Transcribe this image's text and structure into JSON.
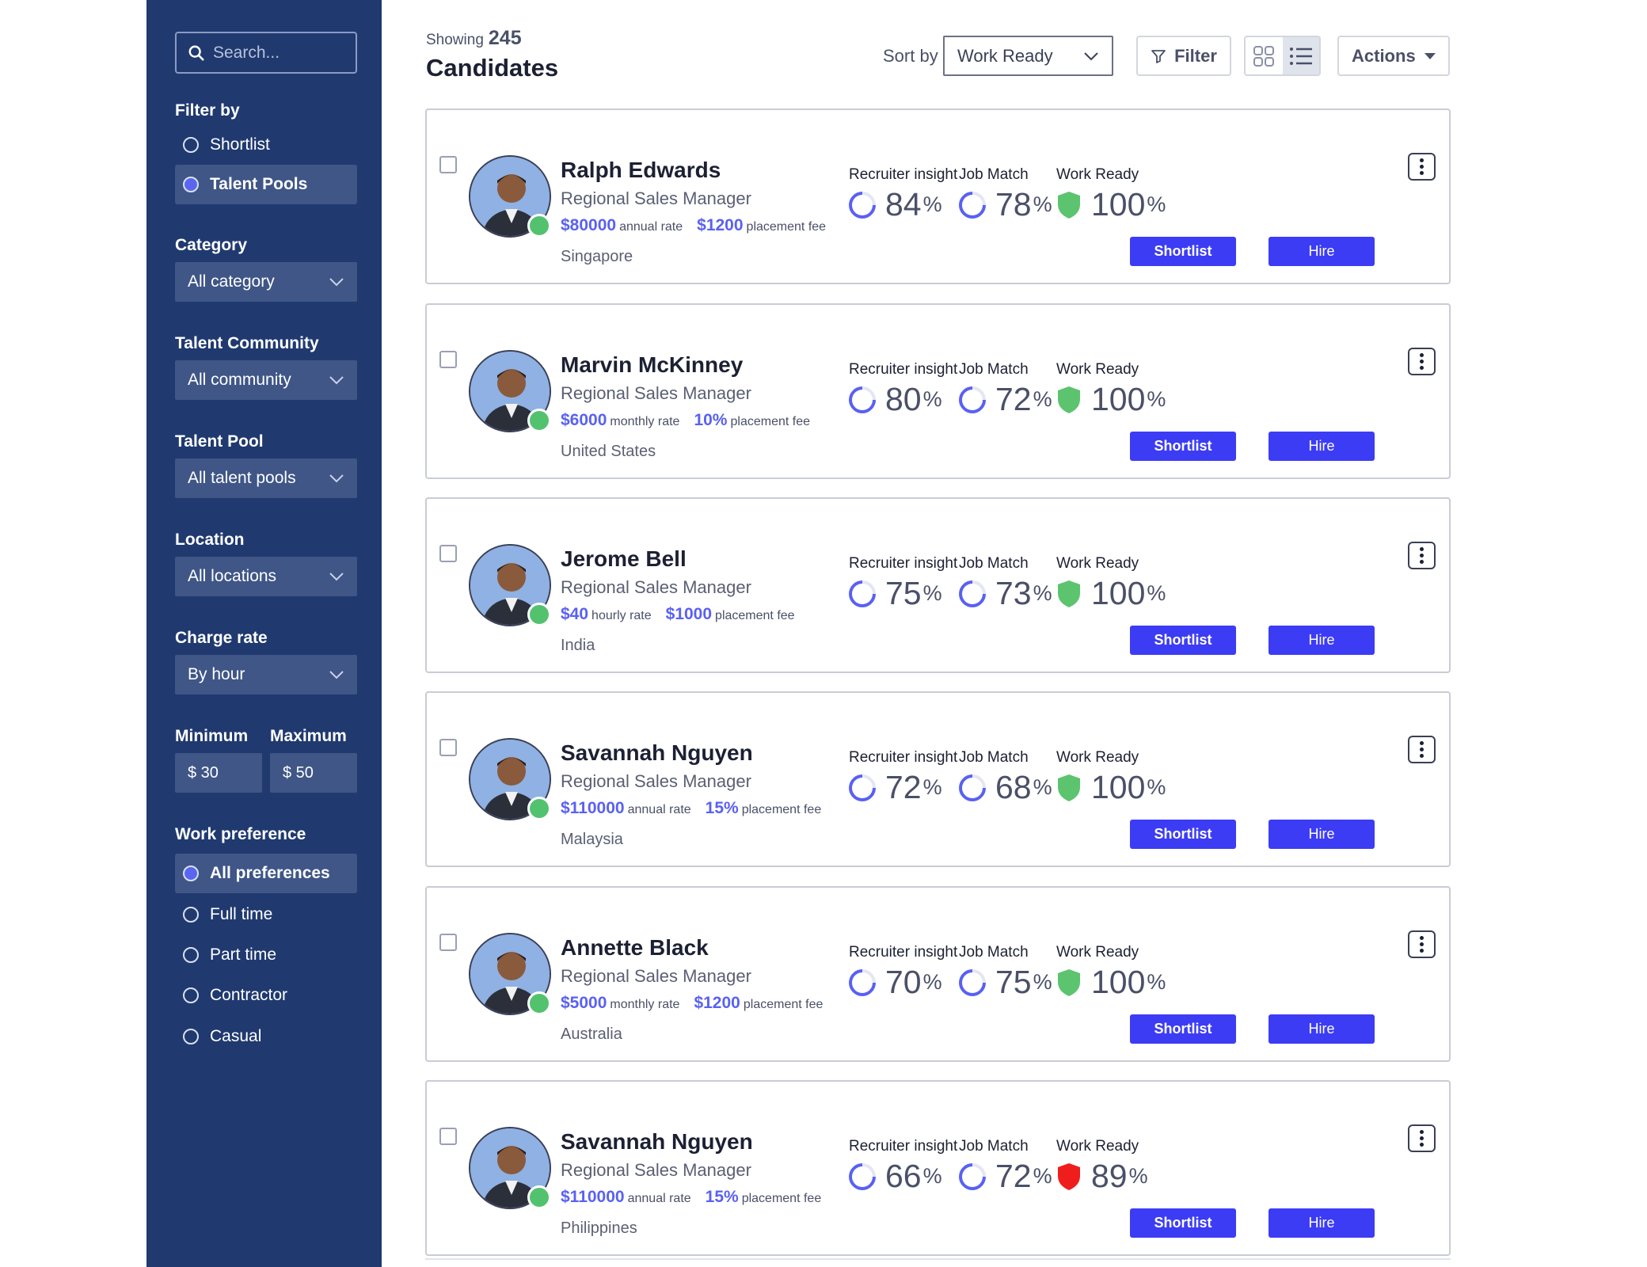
{
  "sidebar": {
    "search_placeholder": "Search...",
    "filter_by_label": "Filter by",
    "filter_options": [
      {
        "label": "Shortlist",
        "selected": false
      },
      {
        "label": "Talent Pools",
        "selected": true
      }
    ],
    "category": {
      "label": "Category",
      "value": "All category"
    },
    "community": {
      "label": "Talent Community",
      "value": "All community"
    },
    "talent_pool": {
      "label": "Talent Pool",
      "value": "All talent pools"
    },
    "location": {
      "label": "Location",
      "value": "All locations"
    },
    "charge_rate": {
      "label": "Charge rate",
      "value": "By hour"
    },
    "minimum": {
      "label": "Minimum",
      "value": "$ 30"
    },
    "maximum": {
      "label": "Maximum",
      "value": "$ 50"
    },
    "work_preference": {
      "label": "Work preference",
      "options": [
        {
          "label": "All preferences",
          "selected": true
        },
        {
          "label": "Full time",
          "selected": false
        },
        {
          "label": "Part time",
          "selected": false
        },
        {
          "label": "Contractor",
          "selected": false
        },
        {
          "label": "Casual",
          "selected": false
        }
      ]
    }
  },
  "header": {
    "showing_label": "Showing",
    "count": "245",
    "title": "Candidates",
    "sort_label": "Sort by",
    "sort_value": "Work Ready",
    "filter_label": "Filter",
    "actions_label": "Actions"
  },
  "metric_labels": {
    "recruiter": "Recruiter insight",
    "job_match": "Job Match",
    "work_ready": "Work Ready",
    "percent": "%"
  },
  "buttons": {
    "shortlist": "Shortlist",
    "hire": "Hire"
  },
  "candidates": [
    {
      "name": "Ralph Edwards",
      "role": "Regional Sales Manager",
      "rate": "$80000",
      "rate_unit": "annual rate",
      "fee": "$1200",
      "fee_unit": "placement fee",
      "location": "Singapore",
      "recruiter_insight": "84",
      "job_match": "78",
      "work_ready": "100",
      "work_ready_status": "ok"
    },
    {
      "name": "Marvin McKinney",
      "role": "Regional Sales Manager",
      "rate": "$6000",
      "rate_unit": "monthly rate",
      "fee": "10%",
      "fee_unit": "placement fee",
      "location": "United States",
      "recruiter_insight": "80",
      "job_match": "72",
      "work_ready": "100",
      "work_ready_status": "ok"
    },
    {
      "name": "Jerome Bell",
      "role": "Regional Sales Manager",
      "rate": "$40",
      "rate_unit": "hourly rate",
      "fee": "$1000",
      "fee_unit": "placement fee",
      "location": "India",
      "recruiter_insight": "75",
      "job_match": "73",
      "work_ready": "100",
      "work_ready_status": "ok"
    },
    {
      "name": "Savannah Nguyen",
      "role": "Regional Sales Manager",
      "rate": "$110000",
      "rate_unit": "annual rate",
      "fee": "15%",
      "fee_unit": "placement fee",
      "location": "Malaysia",
      "recruiter_insight": "72",
      "job_match": "68",
      "work_ready": "100",
      "work_ready_status": "ok"
    },
    {
      "name": "Annette Black",
      "role": "Regional Sales Manager",
      "rate": "$5000",
      "rate_unit": "monthly rate",
      "fee": "$1200",
      "fee_unit": "placement fee",
      "location": "Australia",
      "recruiter_insight": "70",
      "job_match": "75",
      "work_ready": "100",
      "work_ready_status": "ok"
    },
    {
      "name": "Savannah Nguyen",
      "role": "Regional Sales Manager",
      "rate": "$110000",
      "rate_unit": "annual rate",
      "fee": "15%",
      "fee_unit": "placement fee",
      "location": "Philippines",
      "recruiter_insight": "66",
      "job_match": "72",
      "work_ready": "89",
      "work_ready_status": "warning"
    }
  ],
  "colors": {
    "sidebar_bg": "#203a70",
    "accent": "#3c3cf5",
    "shield_ok": "#5cc46e",
    "shield_warning": "#f01d1d",
    "online": "#53c26f"
  }
}
